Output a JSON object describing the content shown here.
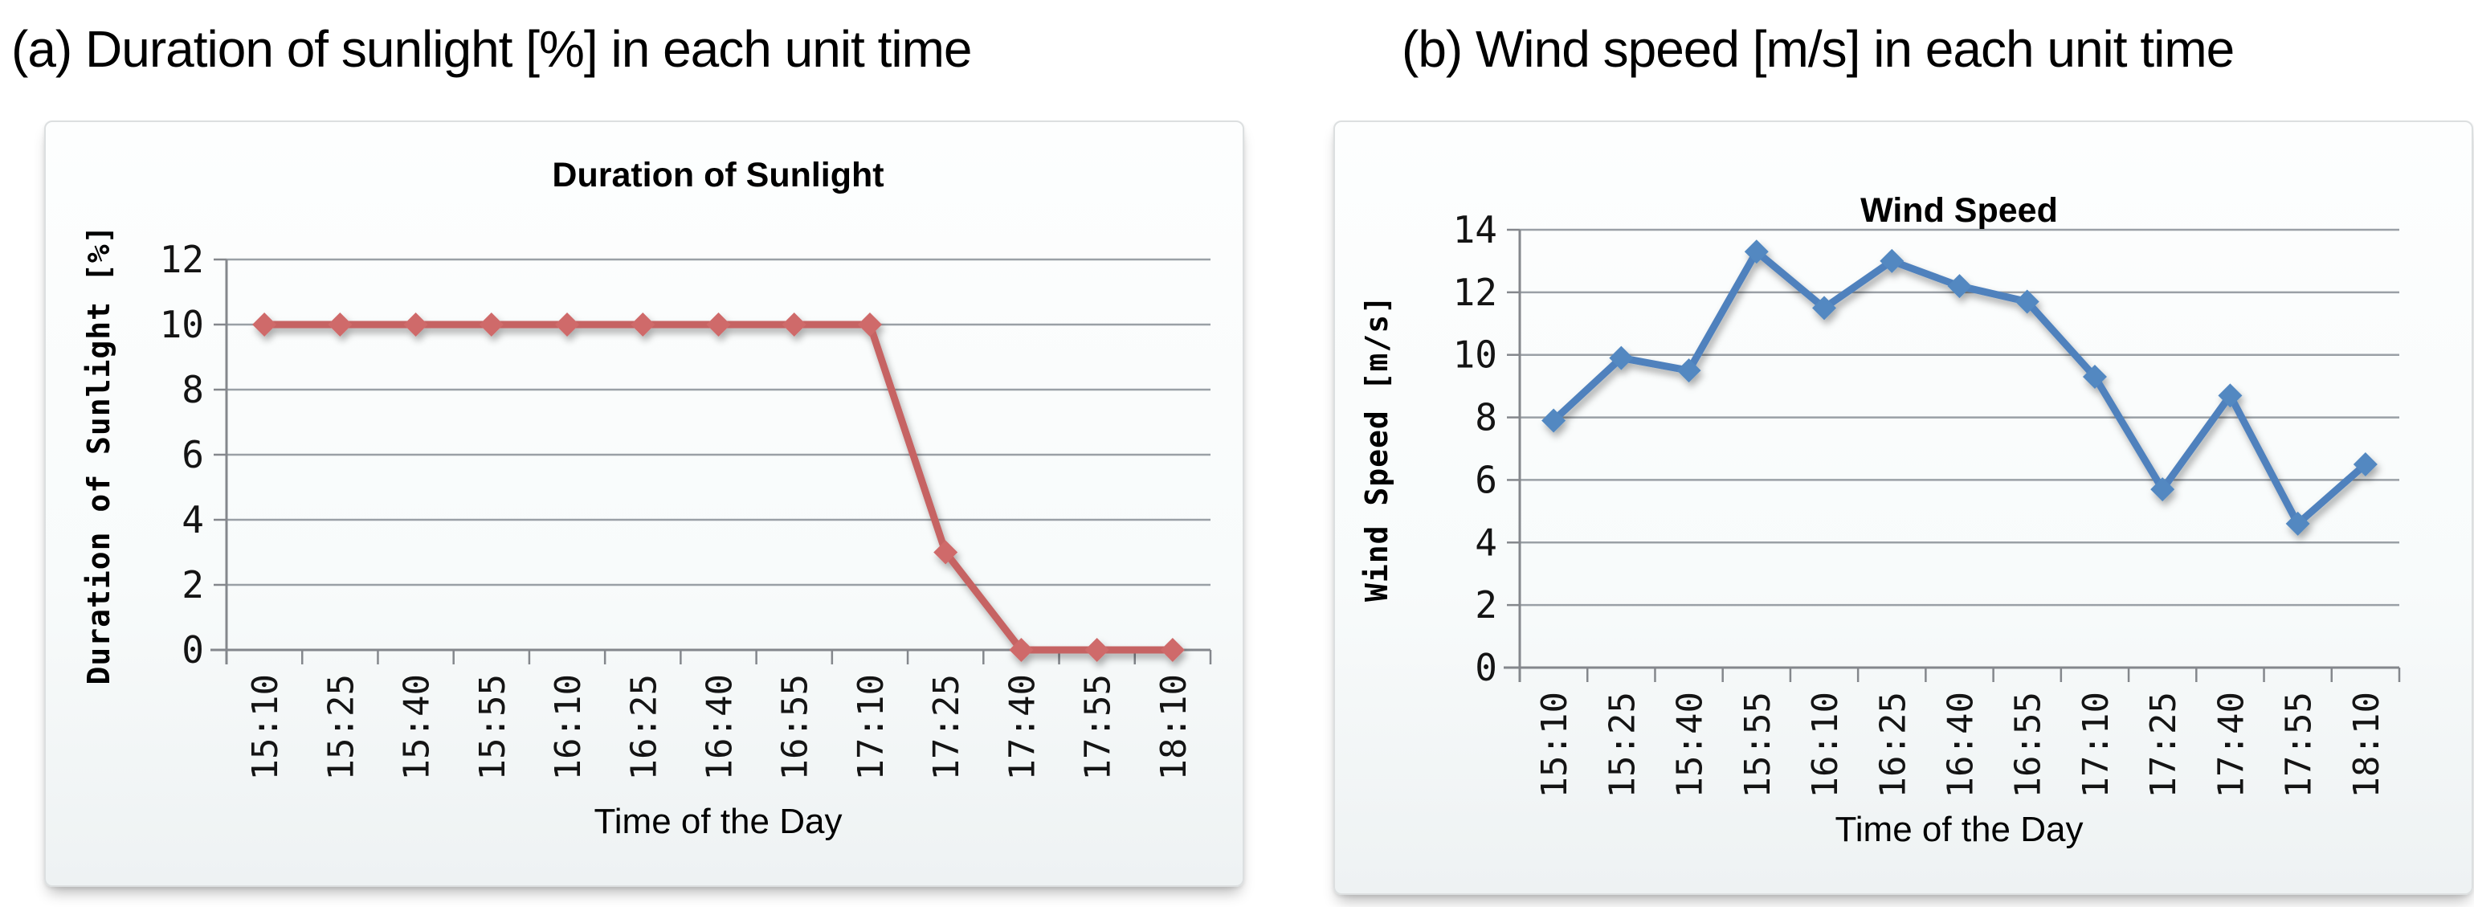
{
  "heading_a": "(a) Duration of sunlight [%] in each unit time",
  "heading_b": "(b) Wind speed [m/s] in each unit time",
  "chart_data": [
    {
      "type": "line",
      "title": "Duration of Sunlight",
      "xlabel": "Time of the Day",
      "ylabel": "Duration of Sunlight [%]",
      "categories": [
        "15:10",
        "15:25",
        "15:40",
        "15:55",
        "16:10",
        "16:25",
        "16:40",
        "16:55",
        "17:10",
        "17:25",
        "17:40",
        "17:55",
        "18:10"
      ],
      "values": [
        10,
        10,
        10,
        10,
        10,
        10,
        10,
        10,
        10,
        3,
        0,
        0,
        0
      ],
      "ylim": [
        0,
        12
      ],
      "yticks": [
        0,
        2,
        4,
        6,
        8,
        10,
        12
      ],
      "grid": true,
      "legend": "none",
      "marker": "diamond",
      "line_color": "#c66463",
      "marker_color": "#cf6b6b",
      "grid_color": "#9aa0a6",
      "axis_color": "#84878c"
    },
    {
      "type": "line",
      "title": "Wind Speed",
      "xlabel": "Time of the Day",
      "ylabel": "Wind Speed [m/s]",
      "categories": [
        "15:10",
        "15:25",
        "15:40",
        "15:55",
        "16:10",
        "16:25",
        "16:40",
        "16:55",
        "17:10",
        "17:25",
        "17:40",
        "17:55",
        "18:10"
      ],
      "values": [
        7.9,
        9.9,
        9.5,
        13.3,
        11.5,
        13.0,
        12.2,
        11.7,
        9.3,
        5.7,
        8.7,
        4.6,
        6.5
      ],
      "ylim": [
        0,
        14
      ],
      "yticks": [
        0,
        2,
        4,
        6,
        8,
        10,
        12,
        14
      ],
      "grid": true,
      "legend": "none",
      "marker": "diamond",
      "line_color": "#4f81bd",
      "marker_color": "#5288c1",
      "grid_color": "#9aa0a6",
      "axis_color": "#84878c"
    }
  ]
}
